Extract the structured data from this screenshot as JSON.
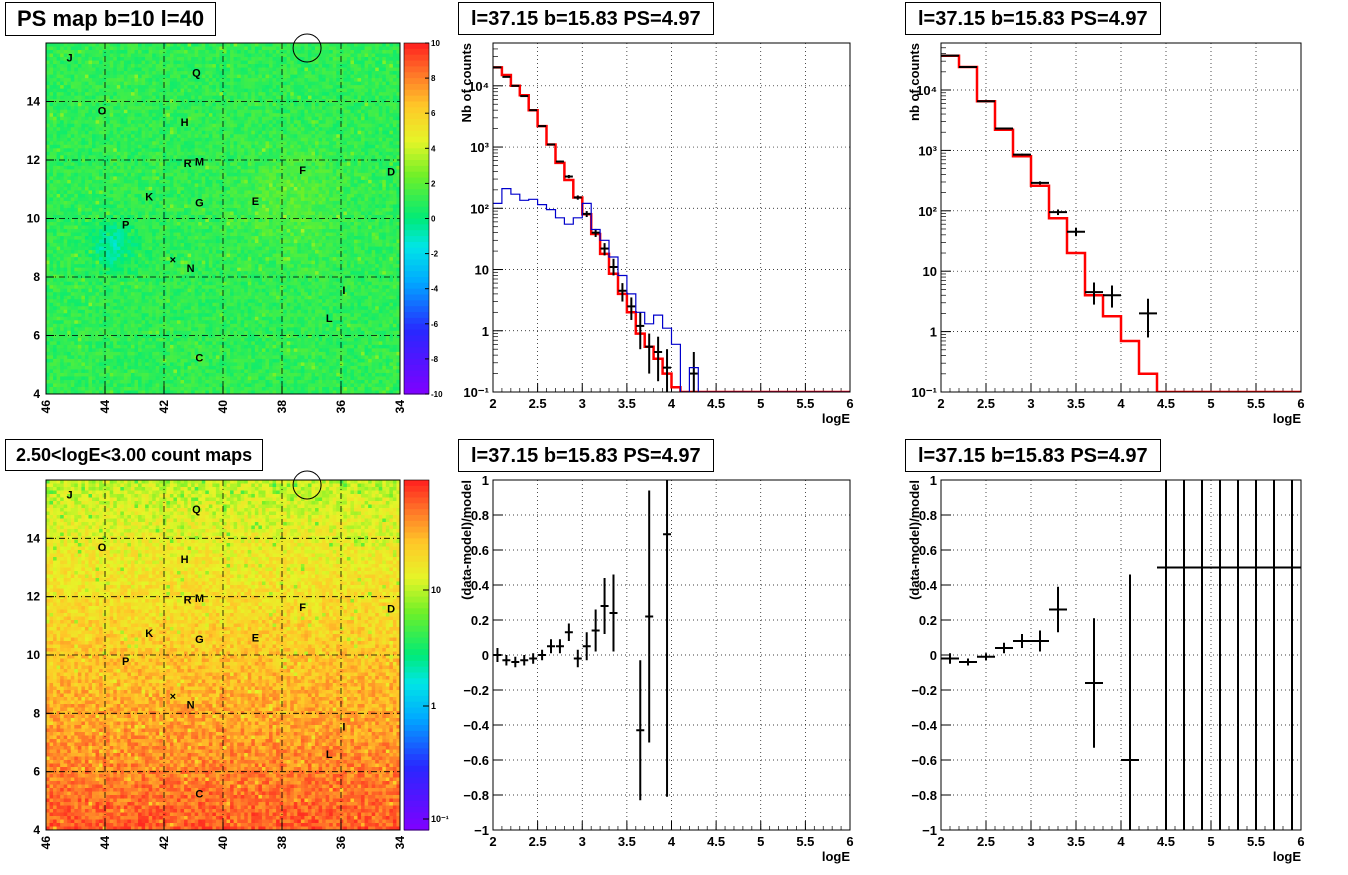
{
  "titles": {
    "map_top": "PS map b=10 l=40",
    "map_bottom": "2.50<logE<3.00 count maps",
    "panel": "l=37.15 b=15.83 PS=4.97"
  },
  "colors": {
    "data_marker": "#000000",
    "model_line": "#ff0000",
    "blue_curve": "#0000cc",
    "grid": "#000000"
  },
  "chart_data": [
    {
      "type": "heatmap",
      "title": "PS map b=10 l=40",
      "xlabel": "",
      "ylabel": "",
      "xlim": [
        46,
        34
      ],
      "ylim": [
        4,
        16
      ],
      "x_ticks": [
        46,
        44,
        42,
        40,
        38,
        36,
        34
      ],
      "y_ticks": [
        4,
        6,
        8,
        10,
        12,
        14
      ],
      "colorbar": {
        "ticks": [
          -10,
          -8,
          -6,
          -4,
          -2,
          0,
          2,
          4,
          6,
          8,
          10
        ],
        "range": [
          -10,
          10
        ]
      },
      "grid": true,
      "source_labels": [
        {
          "name": "J",
          "l": 45.2,
          "b": 15.5
        },
        {
          "name": "Q",
          "l": 40.9,
          "b": 15.0
        },
        {
          "name": "O",
          "l": 44.1,
          "b": 13.7
        },
        {
          "name": "H",
          "l": 41.3,
          "b": 13.3
        },
        {
          "name": "R",
          "l": 41.2,
          "b": 11.9
        },
        {
          "name": "M",
          "l": 40.8,
          "b": 11.95
        },
        {
          "name": "F",
          "l": 37.3,
          "b": 11.65
        },
        {
          "name": "D",
          "l": 34.3,
          "b": 11.6
        },
        {
          "name": "K",
          "l": 42.5,
          "b": 10.75
        },
        {
          "name": "G",
          "l": 40.8,
          "b": 10.55
        },
        {
          "name": "E",
          "l": 38.9,
          "b": 10.6
        },
        {
          "name": "P",
          "l": 43.3,
          "b": 9.8
        },
        {
          "name": "N",
          "l": 41.1,
          "b": 8.3
        },
        {
          "name": "I",
          "l": 35.9,
          "b": 7.55
        },
        {
          "name": "L",
          "l": 36.4,
          "b": 6.6
        },
        {
          "name": "C",
          "l": 40.8,
          "b": 5.25
        }
      ],
      "cross_marker": {
        "l": 41.7,
        "b": 8.6
      },
      "circle_marker": {
        "l": 37.15,
        "b": 15.83
      }
    },
    {
      "type": "heatmap",
      "title": "2.50<logE<3.00 count maps",
      "xlabel": "",
      "ylabel": "",
      "xlim": [
        46,
        34
      ],
      "ylim": [
        4,
        16
      ],
      "x_ticks": [
        46,
        44,
        42,
        40,
        38,
        36,
        34
      ],
      "y_ticks": [
        4,
        6,
        8,
        10,
        12,
        14
      ],
      "colorbar": {
        "log": true,
        "tick_labels": [
          "10",
          "1",
          "10⁻¹"
        ]
      },
      "grid": true
    },
    {
      "type": "line",
      "title": "l=37.15 b=15.83 PS=4.97",
      "xlabel": "logE",
      "ylabel": "Nb of counts",
      "xlim": [
        2,
        6
      ],
      "ylim": [
        0.1,
        50000
      ],
      "log_y": true,
      "x_ticks": [
        2,
        2.5,
        3,
        3.5,
        4,
        4.5,
        5,
        5.5,
        6
      ],
      "y_tick_labels": [
        "10⁻¹",
        "1",
        "10",
        "10²",
        "10³",
        "10⁴"
      ],
      "grid": true,
      "series": [
        {
          "kind": "step",
          "edges": [
            2.0,
            2.1,
            2.2,
            2.3,
            2.4,
            2.5,
            2.6,
            2.7,
            2.8,
            2.9,
            3.0,
            3.1,
            3.2,
            3.3,
            3.4,
            3.5,
            3.6,
            3.7,
            3.8,
            3.9,
            4.0,
            4.1,
            4.2,
            4.3,
            4.4,
            6.0
          ],
          "values": [
            20000,
            15000,
            10000,
            7000,
            4000,
            2200,
            1100,
            550,
            290,
            150,
            80,
            38,
            18,
            8.5,
            4,
            2,
            0.9,
            0.55,
            0.35,
            0.2,
            0.12,
            0.1,
            0.1,
            0.1,
            0.1
          ]
        },
        {
          "kind": "points",
          "x": [
            2.05,
            2.15,
            2.25,
            2.35,
            2.45,
            2.55,
            2.65,
            2.75,
            2.85,
            2.95,
            3.05,
            3.15,
            3.25,
            3.35,
            3.45,
            3.55,
            3.65,
            3.75,
            3.85,
            3.95,
            4.25
          ],
          "y": [
            20000,
            14000,
            10000,
            6800,
            4000,
            2200,
            1100,
            580,
            330,
            150,
            81,
            40,
            22,
            11,
            4.5,
            2.5,
            1.2,
            0.55,
            0.45,
            0.25,
            0.2
          ],
          "yerr_lo": [
            19800,
            13900,
            9900,
            6700,
            3950,
            2150,
            1070,
            560,
            310,
            138,
            72,
            34,
            17,
            8,
            3,
            1.5,
            0.5,
            0.2,
            0.15,
            0.1,
            0.07
          ],
          "yerr_hi": [
            20200,
            14100,
            10100,
            6900,
            4050,
            2250,
            1130,
            600,
            350,
            162,
            90,
            46,
            27,
            15,
            6,
            3.5,
            2,
            0.9,
            0.8,
            0.5,
            0.45
          ]
        },
        {
          "kind": "step",
          "edges": [
            2.0,
            2.1,
            2.2,
            2.3,
            2.4,
            2.5,
            2.6,
            2.7,
            2.8,
            2.9,
            3.0,
            3.1,
            3.2,
            3.3,
            3.4,
            3.5,
            3.6,
            3.7,
            3.8,
            3.9,
            4.0,
            4.1,
            4.2,
            4.3,
            6.0
          ],
          "values": [
            120,
            210,
            170,
            135,
            140,
            115,
            95,
            70,
            55,
            70,
            120,
            45,
            30,
            16,
            8,
            4,
            2,
            1.3,
            1.8,
            1.1,
            0.6,
            0.1,
            0.25,
            0.1
          ]
        }
      ]
    },
    {
      "type": "line",
      "title": "l=37.15 b=15.83 PS=4.97",
      "xlabel": "logE",
      "ylabel": "nb of counts",
      "xlim": [
        2,
        6
      ],
      "ylim": [
        0.1,
        60000
      ],
      "log_y": true,
      "x_ticks": [
        2,
        2.5,
        3,
        3.5,
        4,
        4.5,
        5,
        5.5,
        6
      ],
      "y_tick_labels": [
        "10⁻¹",
        "1",
        "10",
        "10²",
        "10³",
        "10⁴"
      ],
      "grid": true,
      "series": [
        {
          "kind": "step",
          "edges": [
            2.0,
            2.2,
            2.4,
            2.6,
            2.8,
            3.0,
            3.2,
            3.4,
            3.6,
            3.8,
            4.0,
            4.2,
            4.4,
            6.0
          ],
          "values": [
            37000,
            24000,
            6500,
            2200,
            800,
            260,
            75,
            20,
            4,
            1.8,
            0.7,
            0.2,
            0.1
          ]
        },
        {
          "kind": "points",
          "x": [
            2.1,
            2.3,
            2.5,
            2.7,
            2.9,
            3.1,
            3.3,
            3.5,
            3.7,
            3.9,
            4.3
          ],
          "y": [
            37000,
            24000,
            6500,
            2300,
            850,
            290,
            95,
            45,
            4.5,
            4,
            2
          ],
          "yerr_lo": [
            36800,
            23800,
            6400,
            2250,
            820,
            273,
            85,
            38,
            2.8,
            2.5,
            0.8
          ],
          "yerr_hi": [
            37200,
            24200,
            6600,
            2350,
            880,
            307,
            105,
            52,
            6.5,
            5.8,
            3.5
          ]
        }
      ]
    },
    {
      "type": "scatter",
      "title": "l=37.15 b=15.83 PS=4.97",
      "xlabel": "logE",
      "ylabel": "(data-model)/model",
      "xlim": [
        2,
        6
      ],
      "ylim": [
        -1,
        1
      ],
      "x_ticks": [
        2,
        2.5,
        3,
        3.5,
        4,
        4.5,
        5,
        5.5,
        6
      ],
      "y_ticks": [
        -1,
        -0.8,
        -0.6,
        -0.4,
        -0.2,
        0,
        0.2,
        0.4,
        0.6,
        0.8,
        1
      ],
      "grid": true,
      "series": [
        {
          "kind": "points",
          "x": [
            2.05,
            2.15,
            2.25,
            2.35,
            2.45,
            2.55,
            2.65,
            2.75,
            2.85,
            2.95,
            3.05,
            3.15,
            3.25,
            3.35,
            3.65,
            3.75,
            3.95
          ],
          "y": [
            0,
            -0.03,
            -0.04,
            -0.03,
            -0.02,
            0.0,
            0.05,
            0.05,
            0.13,
            -0.02,
            0.05,
            0.14,
            0.28,
            0.24,
            -0.43,
            0.22,
            0.69
          ],
          "yerr": [
            0.04,
            0.03,
            0.03,
            0.03,
            0.03,
            0.03,
            0.04,
            0.04,
            0.05,
            0.05,
            0.08,
            0.12,
            0.16,
            0.22,
            0.4,
            0.72,
            1.5
          ]
        }
      ]
    },
    {
      "type": "scatter",
      "title": "l=37.15 b=15.83 PS=4.97",
      "xlabel": "logE",
      "ylabel": "(data-model)/model",
      "xlim": [
        2,
        6
      ],
      "ylim": [
        -1,
        1
      ],
      "x_ticks": [
        2,
        2.5,
        3,
        3.5,
        4,
        4.5,
        5,
        5.5,
        6
      ],
      "y_ticks": [
        -1,
        -0.8,
        -0.6,
        -0.4,
        -0.2,
        0,
        0.2,
        0.4,
        0.6,
        0.8,
        1
      ],
      "grid": true,
      "series": [
        {
          "kind": "points",
          "x": [
            2.1,
            2.3,
            2.5,
            2.7,
            2.9,
            3.1,
            3.3,
            3.7,
            4.1,
            4.5,
            4.7,
            4.9,
            5.1,
            5.3,
            5.5,
            5.7,
            5.9
          ],
          "y": [
            -0.02,
            -0.04,
            -0.01,
            0.04,
            0.08,
            0.08,
            0.26,
            -0.16,
            -0.6,
            0.5,
            0.5,
            0.5,
            0.5,
            0.5,
            0.5,
            0.5,
            0.5
          ],
          "yerr": [
            0.03,
            0.02,
            0.02,
            0.03,
            0.04,
            0.06,
            0.13,
            0.37,
            1.06,
            2,
            2,
            2,
            2,
            2,
            2,
            2,
            2
          ]
        }
      ]
    }
  ]
}
